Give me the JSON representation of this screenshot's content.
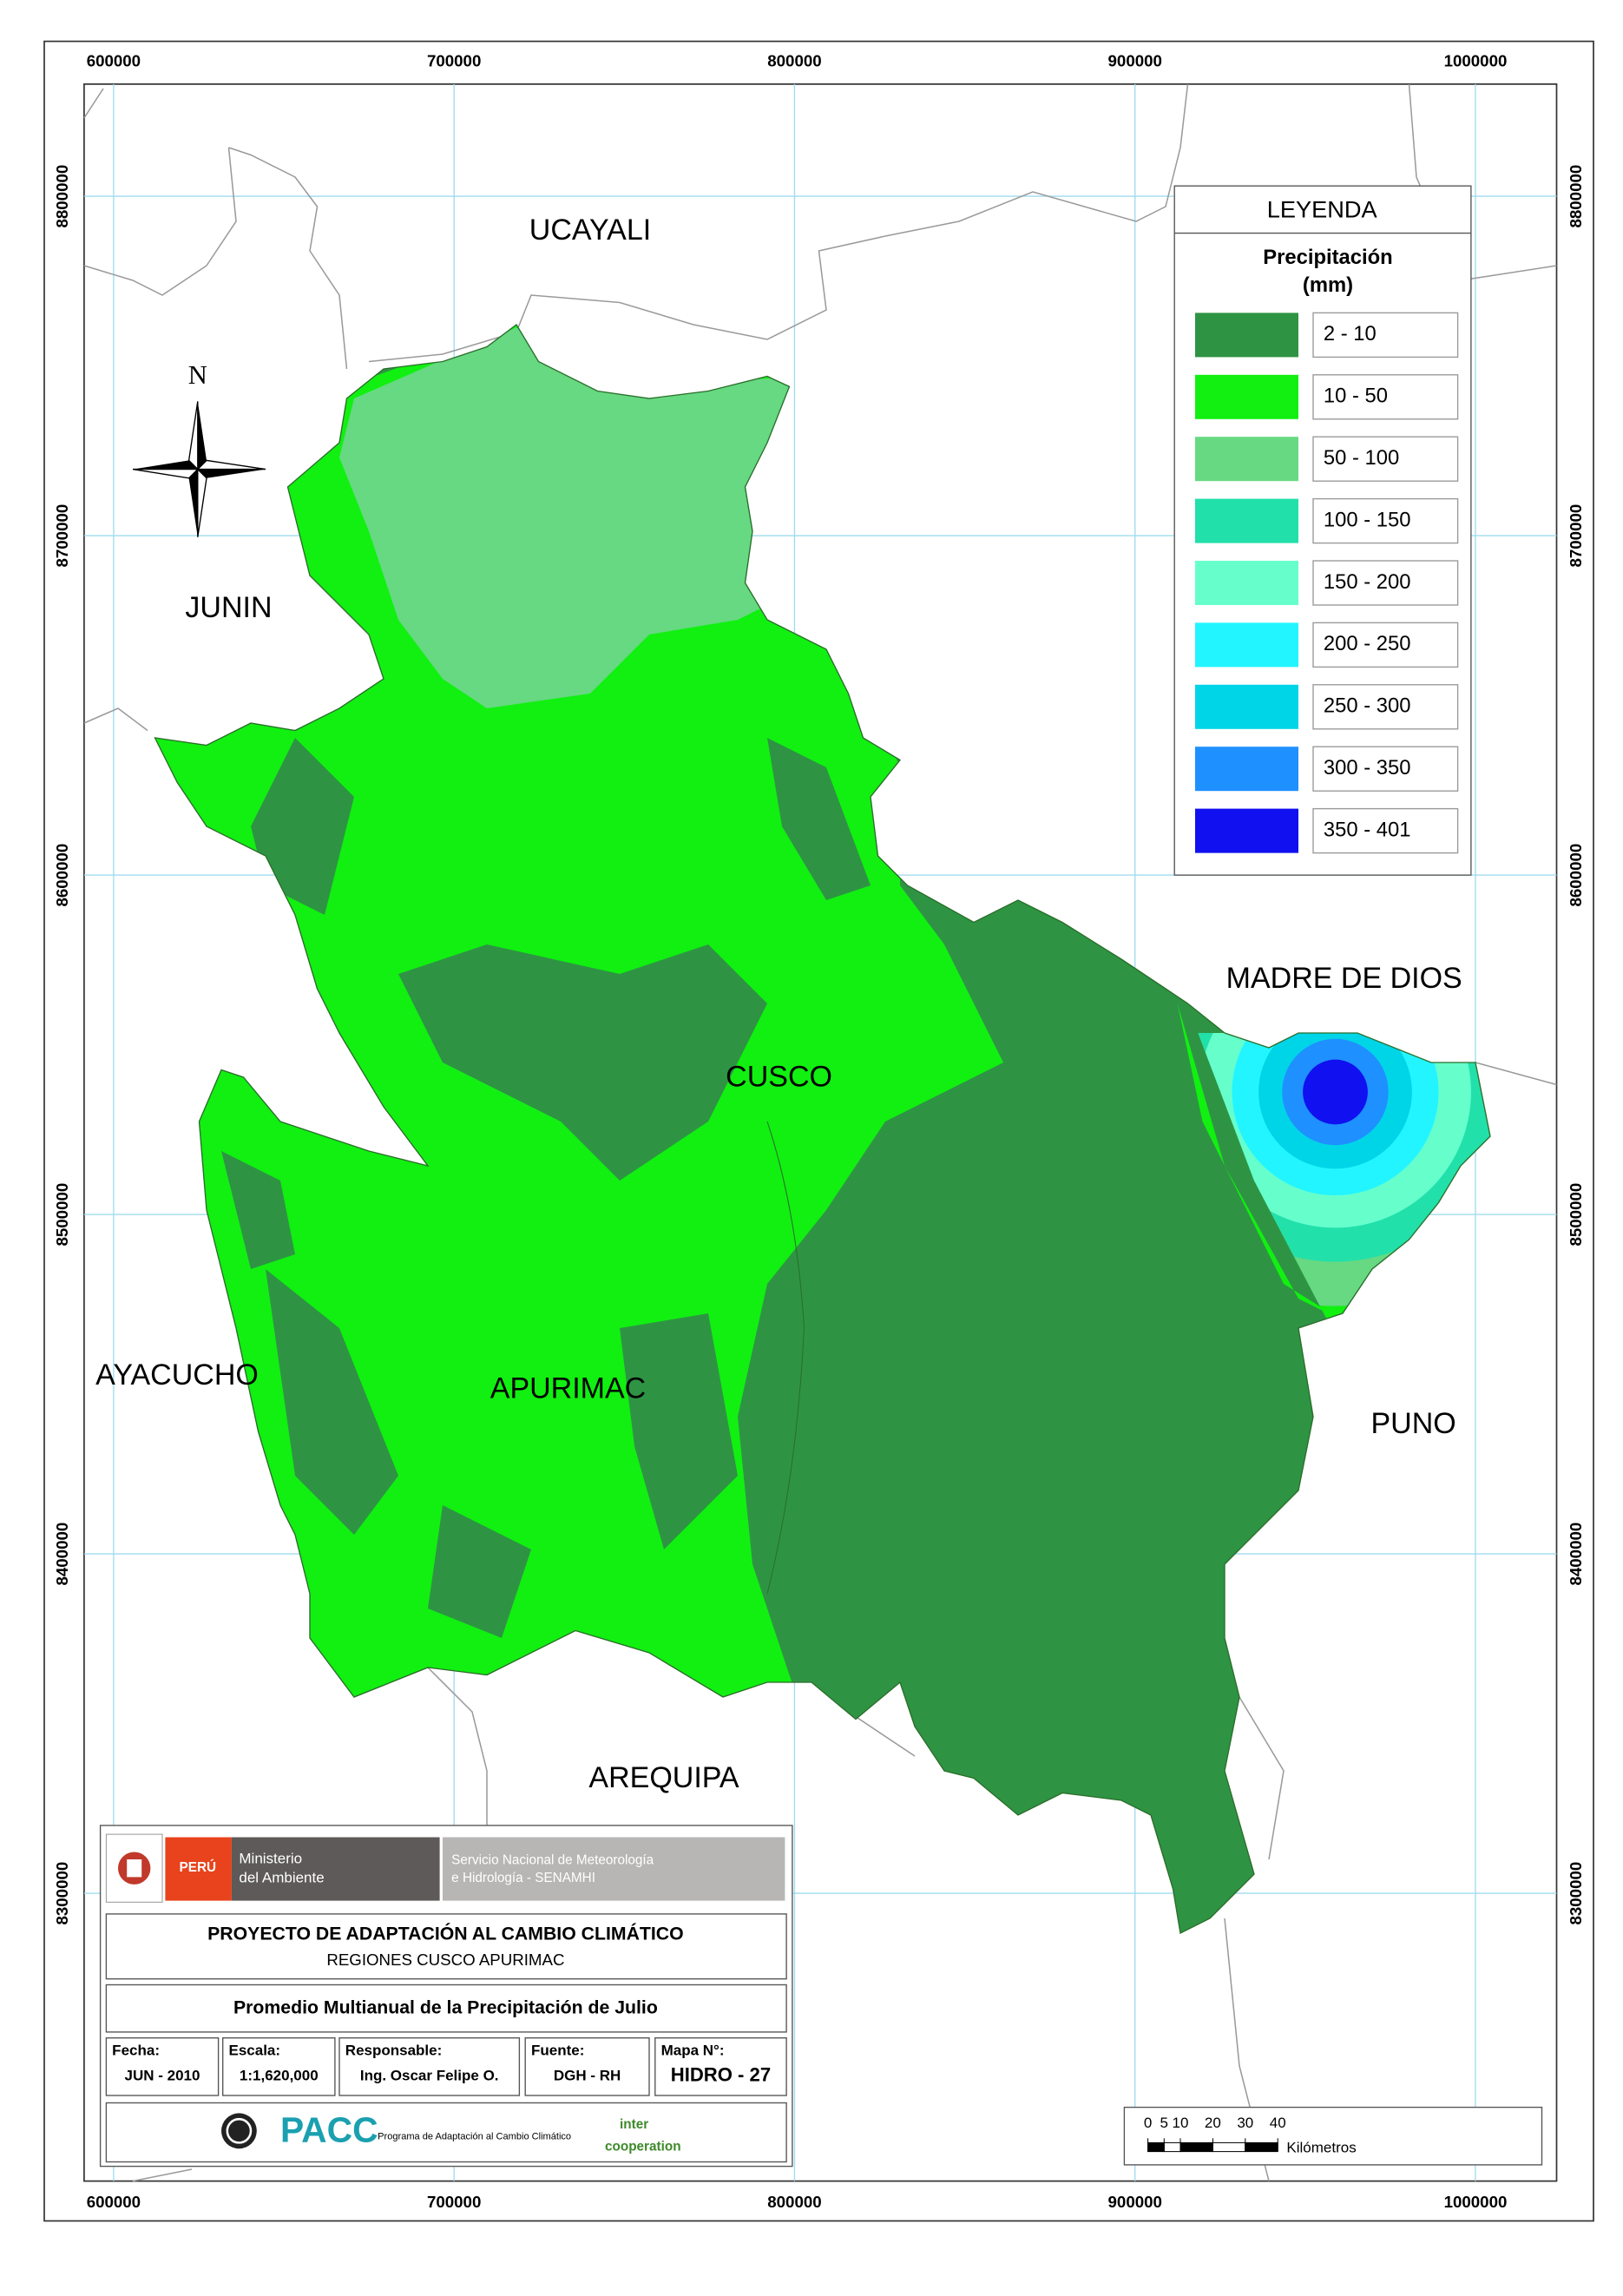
{
  "map": {
    "grid": {
      "eastings": [
        600000,
        700000,
        800000,
        900000,
        1000000
      ],
      "northings": [
        8800000,
        8700000,
        8600000,
        8500000,
        8400000,
        8300000
      ]
    },
    "north_arrow": "N",
    "regions": [
      "UCAYALI",
      "JUNIN",
      "AYACUCHO",
      "APURIMAC",
      "CUSCO",
      "MADRE DE DIOS",
      "PUNO",
      "AREQUIPA"
    ]
  },
  "legend": {
    "title": "LEYENDA",
    "heading": [
      "Precipitación",
      "(mm)"
    ],
    "classes": [
      {
        "label": "2 - 10",
        "color": "#2e9444"
      },
      {
        "label": "10 - 50",
        "color": "#11f011"
      },
      {
        "label": "50 - 100",
        "color": "#66d982"
      },
      {
        "label": "100 - 150",
        "color": "#22e0aa"
      },
      {
        "label": "150 - 200",
        "color": "#66ffcc"
      },
      {
        "label": "200 - 250",
        "color": "#22f5ff"
      },
      {
        "label": "250 - 300",
        "color": "#00d5e8"
      },
      {
        "label": "300 - 350",
        "color": "#1e90ff"
      },
      {
        "label": "350 - 401",
        "color": "#1010f0"
      }
    ]
  },
  "title_block": {
    "logos": {
      "peru": "PERÚ",
      "ministry": [
        "Ministerio",
        "del Ambiente"
      ],
      "senamhi": [
        "Servicio Nacional de Meteorología",
        "e Hidrología - SENAMHI"
      ]
    },
    "project": "PROYECTO DE ADAPTACIÓN AL CAMBIO CLIMÁTICO",
    "subproject": "REGIONES CUSCO APURIMAC",
    "map_title": "Promedio Multianual de la Precipitación de Julio",
    "fields": [
      {
        "label": "Fecha:",
        "value": "JUN - 2010"
      },
      {
        "label": "Escala:",
        "value": "1:1,620,000"
      },
      {
        "label": "Responsable:",
        "value": "Ing. Oscar Felipe O."
      },
      {
        "label": "Fuente:",
        "value": "DGH - RH"
      },
      {
        "label": "Mapa N°:",
        "value": "HIDRO - 27"
      }
    ],
    "footer": {
      "pacc": "PACC",
      "pacc_name": "Programa de Adaptación al Cambio Climático",
      "intercooperation": [
        "inter",
        "cooperation"
      ]
    }
  },
  "scale_bar": {
    "ticks": [
      0,
      5,
      10,
      20,
      30,
      40
    ],
    "unit": "Kilómetros"
  }
}
